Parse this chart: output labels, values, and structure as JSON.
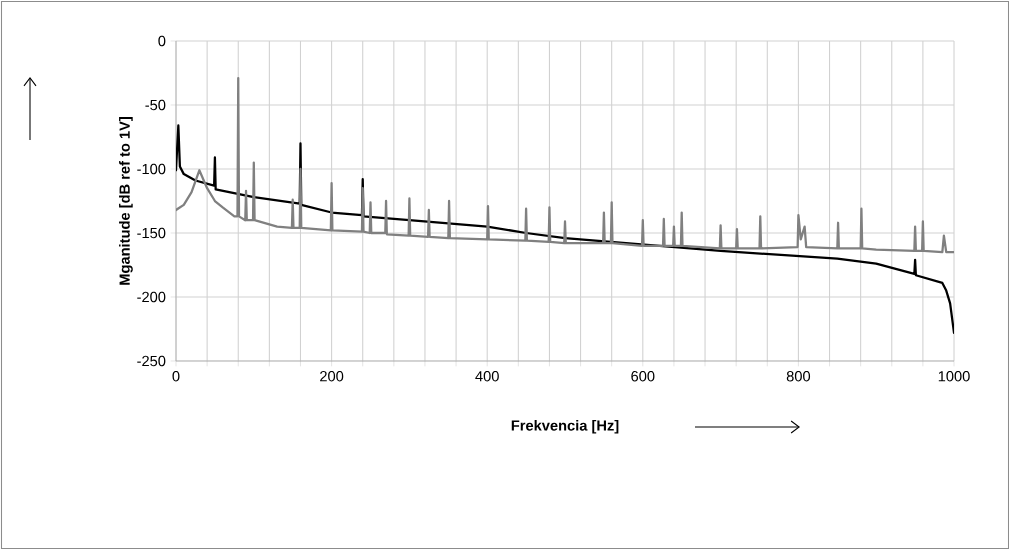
{
  "chart_data": {
    "type": "line",
    "xlabel": "Frekvencia [Hz]",
    "ylabel": "Mganitude [dB ref to 1V]",
    "xlim": [
      0,
      1000
    ],
    "ylim": [
      -250,
      0
    ],
    "xticks": [
      0,
      {
        "value": 40,
        "label": null
      },
      {
        "value": 80,
        "label": null
      },
      {
        "value": 120,
        "label": null
      },
      {
        "value": 160,
        "label": null
      },
      200,
      {
        "value": 240,
        "label": null
      },
      {
        "value": 280,
        "label": null
      },
      {
        "value": 320,
        "label": null
      },
      {
        "value": 360,
        "label": null
      },
      400,
      {
        "value": 440,
        "label": null
      },
      {
        "value": 480,
        "label": null
      },
      {
        "value": 520,
        "label": null
      },
      {
        "value": 560,
        "label": null
      },
      600,
      {
        "value": 640,
        "label": null
      },
      {
        "value": 680,
        "label": null
      },
      {
        "value": 720,
        "label": null
      },
      {
        "value": 760,
        "label": null
      },
      800,
      {
        "value": 840,
        "label": null
      },
      {
        "value": 880,
        "label": null
      },
      {
        "value": 920,
        "label": null
      },
      {
        "value": 960,
        "label": null
      },
      1000
    ],
    "yticks": [
      -250,
      -200,
      -150,
      -100,
      -50,
      0
    ],
    "grid": true,
    "marker": "none",
    "line_style": "solid",
    "series": [
      {
        "color": "#000000",
        "x": [
          0,
          3,
          5,
          10,
          25,
          49,
          50,
          51,
          100,
          159,
          160,
          161,
          200,
          239,
          240,
          241,
          300,
          400,
          450,
          500,
          600,
          700,
          800,
          850,
          900,
          949,
          950,
          951,
          985,
          990,
          995,
          1000
        ],
        "values": [
          -101,
          -66,
          -98,
          -104,
          -109,
          -113,
          -91,
          -116,
          -122,
          -127,
          -80,
          -128,
          -134,
          -136,
          -108,
          -137,
          -140,
          -145,
          -150,
          -154,
          -159,
          -164,
          -168,
          -170,
          -174,
          -182,
          -171,
          -183,
          -189,
          -195,
          -205,
          -228
        ]
      },
      {
        "color": "#808080",
        "x": [
          0,
          10,
          20,
          30,
          40,
          50,
          60,
          75,
          79,
          80,
          81,
          89,
          90,
          91,
          99,
          100,
          101,
          130,
          149,
          150,
          151,
          159,
          160,
          161,
          199,
          200,
          201,
          239,
          240,
          241,
          249,
          250,
          251,
          269,
          270,
          271,
          299,
          300,
          301,
          324,
          325,
          326,
          350,
          351,
          352,
          400,
          401,
          402,
          449,
          450,
          451,
          479,
          480,
          481,
          499,
          500,
          501,
          549,
          550,
          551,
          559,
          560,
          561,
          599,
          600,
          601,
          626,
          627,
          628,
          639,
          640,
          641,
          649,
          650,
          651,
          699,
          700,
          701,
          720,
          721,
          722,
          750,
          751,
          752,
          799,
          800,
          803,
          808,
          810,
          850,
          851,
          852,
          880,
          881,
          882,
          900,
          949,
          950,
          951,
          959,
          960,
          961,
          985,
          987,
          990,
          1000
        ],
        "values": [
          -132,
          -128,
          -118,
          -101,
          -115,
          -125,
          -130,
          -137,
          -137,
          -29,
          -137,
          -140,
          -117,
          -140,
          -140,
          -95,
          -140,
          -145,
          -146,
          -124,
          -146,
          -146,
          -100,
          -146,
          -148,
          -111,
          -148,
          -149,
          -115,
          -149,
          -150,
          -126,
          -150,
          -150,
          -125,
          -151,
          -152,
          -123,
          -152,
          -153,
          -132,
          -153,
          -154,
          -125,
          -154,
          -155,
          -129,
          -155,
          -156,
          -131,
          -156,
          -157,
          -130,
          -157,
          -158,
          -141,
          -158,
          -158,
          -134,
          -158,
          -158,
          -126,
          -158,
          -160,
          -140,
          -160,
          -160,
          -139,
          -160,
          -160,
          -145,
          -160,
          -160,
          -134,
          -160,
          -162,
          -144,
          -162,
          -162,
          -147,
          -162,
          -162,
          -137,
          -162,
          -161,
          -136,
          -155,
          -145,
          -161,
          -162,
          -142,
          -162,
          -162,
          -131,
          -162,
          -163,
          -164,
          -145,
          -164,
          -164,
          -141,
          -164,
          -165,
          -152,
          -165,
          -165
        ]
      }
    ]
  }
}
